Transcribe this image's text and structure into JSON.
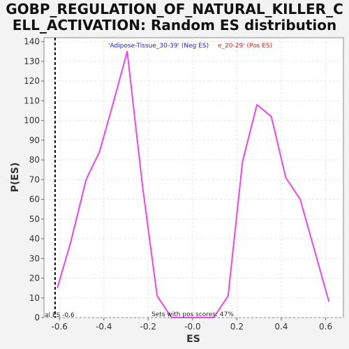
{
  "chart_data": {
    "type": "line",
    "title_lines": [
      "GOBP_REGULATION_OF_NATURAL_KILLER_C",
      "ELL_ACTIVATION: Random ES distribution"
    ],
    "xlabel": "ES",
    "ylabel": "P(ES)",
    "xlim": [
      -0.67,
      0.68
    ],
    "ylim": [
      0,
      142
    ],
    "xticks": [
      -0.6,
      -0.4,
      -0.2,
      0.0,
      0.2,
      0.4,
      0.6
    ],
    "xtick_labels": [
      "-0.6",
      "-0.4",
      "-0.2",
      "-0.0",
      "0.2",
      "0.4",
      "0.6"
    ],
    "yticks": [
      0,
      10,
      20,
      30,
      40,
      50,
      60,
      70,
      80,
      90,
      100,
      110,
      120,
      130,
      140
    ],
    "grid": true,
    "series": [
      {
        "color": "#ee44ee",
        "x": [
          -0.61,
          -0.55,
          -0.48,
          -0.42,
          -0.36,
          -0.295,
          -0.225,
          -0.16,
          -0.095,
          -0.03,
          0.03,
          0.095,
          0.16,
          0.225,
          0.29,
          0.355,
          0.42,
          0.485,
          0.55,
          0.615
        ],
        "y": [
          15,
          38,
          70,
          84,
          108,
          135,
          66,
          11,
          0,
          0,
          0,
          0,
          11,
          79,
          108,
          102,
          71,
          60,
          34,
          8
        ]
      }
    ],
    "vline": {
      "x": -0.62,
      "label": "al ES -0.6",
      "color": "#000000"
    },
    "annotations": {
      "neg_label": "'Adipose-Tissue_30-39' (Neg ES)",
      "neg_color": "#2222cc",
      "pos_label": "e_20-29' (Pos ES)",
      "pos_color": "#dd2222",
      "pos_scores": "Sets with pos scores: 47%"
    }
  }
}
